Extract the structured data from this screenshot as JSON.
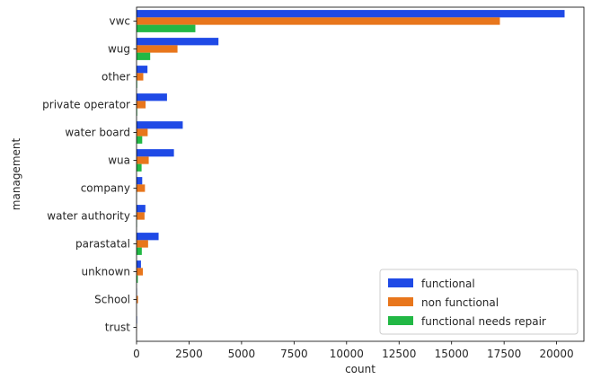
{
  "chart_data": {
    "type": "bar",
    "orientation": "horizontal",
    "categories": [
      "vwc",
      "wug",
      "other",
      "private operator",
      "water board",
      "wua",
      "company",
      "water authority",
      "parastatal",
      "unknown",
      "School",
      "trust"
    ],
    "series": [
      {
        "name": "functional",
        "color": "#1f4ae6",
        "values": [
          20380,
          3900,
          520,
          1450,
          2200,
          1780,
          270,
          420,
          1050,
          210,
          20,
          25
        ]
      },
      {
        "name": "non functional",
        "color": "#e8761c",
        "values": [
          17300,
          1950,
          320,
          430,
          530,
          580,
          400,
          380,
          550,
          300,
          70,
          10
        ]
      },
      {
        "name": "functional needs repair",
        "color": "#22b845",
        "values": [
          2800,
          650,
          30,
          30,
          270,
          240,
          10,
          20,
          250,
          60,
          0,
          0
        ]
      }
    ],
    "xlabel": "count",
    "ylabel": "management",
    "xlim": [
      0,
      21300
    ],
    "xticks": [
      0,
      2500,
      5000,
      7500,
      10000,
      12500,
      15000,
      17500,
      20000
    ],
    "xtick_labels": [
      "0",
      "2500",
      "5000",
      "7500",
      "10000",
      "12500",
      "15000",
      "17500",
      "20000"
    ],
    "grid": false,
    "legend_position": "lower-right"
  }
}
